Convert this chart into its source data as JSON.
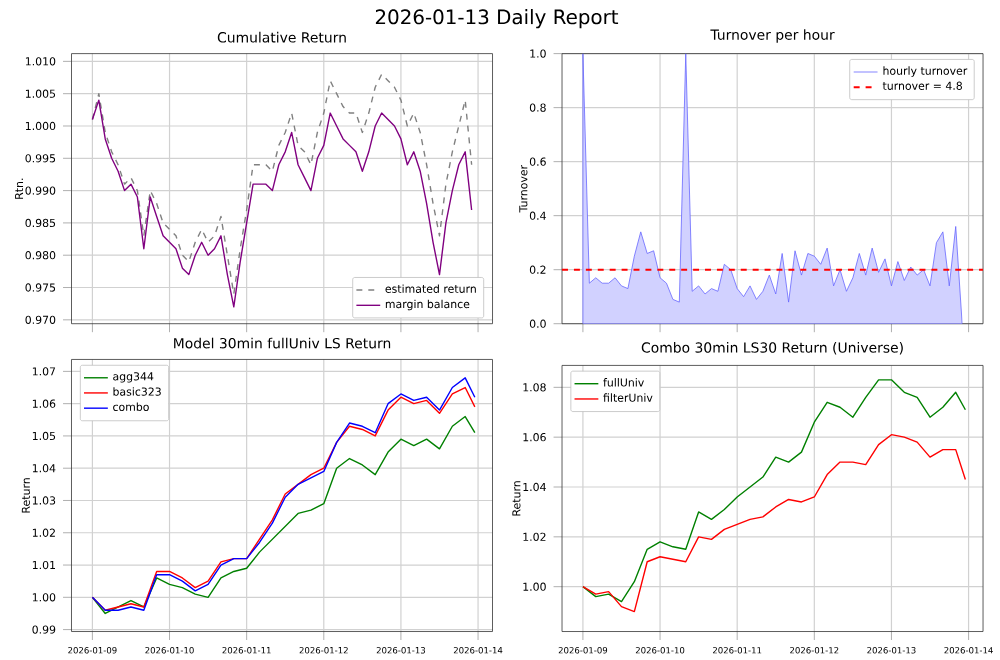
{
  "chart_data": [
    {
      "type": "line",
      "title": "Cumulative Return",
      "ylabel": "Rtn.",
      "annotations": [
        "2026-01-13 Daily Report"
      ],
      "x": [
        "2026-01-09T00:00",
        "2026-01-09T02:00",
        "2026-01-09T04:00",
        "2026-01-09T06:00",
        "2026-01-09T08:00",
        "2026-01-09T10:00",
        "2026-01-09T12:00",
        "2026-01-09T14:00",
        "2026-01-09T16:00",
        "2026-01-09T18:00",
        "2026-01-09T20:00",
        "2026-01-09T22:00",
        "2026-01-10T00:00",
        "2026-01-10T02:00",
        "2026-01-10T04:00",
        "2026-01-10T06:00",
        "2026-01-10T08:00",
        "2026-01-10T10:00",
        "2026-01-10T12:00",
        "2026-01-10T14:00",
        "2026-01-10T16:00",
        "2026-01-10T18:00",
        "2026-01-10T20:00",
        "2026-01-10T22:00",
        "2026-01-11T00:00",
        "2026-01-11T02:00",
        "2026-01-11T04:00",
        "2026-01-11T06:00",
        "2026-01-11T08:00",
        "2026-01-11T10:00",
        "2026-01-11T12:00",
        "2026-01-11T14:00",
        "2026-01-11T16:00",
        "2026-01-11T18:00",
        "2026-01-11T20:00",
        "2026-01-11T22:00",
        "2026-01-12T00:00",
        "2026-01-12T02:00",
        "2026-01-12T04:00",
        "2026-01-12T06:00",
        "2026-01-12T08:00",
        "2026-01-12T10:00",
        "2026-01-12T12:00",
        "2026-01-12T14:00",
        "2026-01-12T16:00",
        "2026-01-12T18:00",
        "2026-01-12T20:00",
        "2026-01-12T22:00",
        "2026-01-13T00:00",
        "2026-01-13T02:00",
        "2026-01-13T04:00",
        "2026-01-13T06:00",
        "2026-01-13T08:00",
        "2026-01-13T10:00",
        "2026-01-13T12:00",
        "2026-01-13T14:00",
        "2026-01-13T16:00",
        "2026-01-13T18:00",
        "2026-01-13T20:00",
        "2026-01-13T22:00"
      ],
      "series": [
        {
          "name": "estimated return",
          "color": "#808080",
          "line_style": "dashed",
          "values": [
            1.001,
            1.005,
            0.999,
            0.996,
            0.994,
            0.991,
            0.992,
            0.99,
            0.983,
            0.99,
            0.988,
            0.985,
            0.984,
            0.983,
            0.98,
            0.979,
            0.982,
            0.984,
            0.982,
            0.983,
            0.986,
            0.98,
            0.974,
            0.981,
            0.987,
            0.994,
            0.994,
            0.994,
            0.993,
            0.997,
            0.999,
            1.002,
            0.997,
            0.996,
            0.994,
            0.999,
            1.002,
            1.007,
            1.005,
            1.003,
            1.002,
            1.002,
            0.999,
            1.002,
            1.006,
            1.008,
            1.007,
            1.006,
            1.004,
            1.0,
            1.002,
            0.999,
            0.994,
            0.988,
            0.983,
            0.991,
            0.996,
            1.0,
            1.004,
            0.994
          ]
        },
        {
          "name": "margin balance",
          "color": "#800080",
          "values": [
            1.001,
            1.004,
            0.998,
            0.995,
            0.993,
            0.99,
            0.991,
            0.989,
            0.981,
            0.989,
            0.986,
            0.983,
            0.982,
            0.981,
            0.978,
            0.977,
            0.98,
            0.982,
            0.98,
            0.981,
            0.983,
            0.977,
            0.972,
            0.979,
            0.985,
            0.991,
            0.991,
            0.991,
            0.99,
            0.994,
            0.996,
            0.999,
            0.994,
            0.992,
            0.99,
            0.995,
            0.997,
            1.002,
            1.0,
            0.998,
            0.997,
            0.996,
            0.993,
            0.996,
            1.0,
            1.002,
            1.001,
            1.0,
            0.998,
            0.994,
            0.996,
            0.993,
            0.988,
            0.982,
            0.977,
            0.985,
            0.99,
            0.994,
            0.996,
            0.987
          ]
        }
      ],
      "xlim": [
        "2026-01-08T17:30",
        "2026-01-14T04:30"
      ],
      "xticks": [
        "2026-01-09",
        "2026-01-10",
        "2026-01-11",
        "2026-01-12",
        "2026-01-13",
        "2026-01-14"
      ],
      "ylim": [
        0.9694,
        1.0112
      ],
      "yticks": [
        {
          "value": 0.97,
          "label": "0.970"
        },
        {
          "value": 0.975,
          "label": "0.975"
        },
        {
          "value": 0.98,
          "label": "0.980"
        },
        {
          "value": 0.985,
          "label": "0.985"
        },
        {
          "value": 0.99,
          "label": "0.990"
        },
        {
          "value": 0.995,
          "label": "0.995"
        },
        {
          "value": 1.0,
          "label": "1.000"
        },
        {
          "value": 1.005,
          "label": "1.005"
        },
        {
          "value": 1.01,
          "label": "1.010"
        }
      ],
      "tick_labels": "y",
      "grid": true,
      "legend": "bottom right"
    },
    {
      "type": "area",
      "title": "Turnover per hour",
      "ylabel": "Turnover",
      "x": [
        "2026-01-09T00:00",
        "2026-01-09T02:00",
        "2026-01-09T04:00",
        "2026-01-09T06:00",
        "2026-01-09T08:00",
        "2026-01-09T10:00",
        "2026-01-09T12:00",
        "2026-01-09T14:00",
        "2026-01-09T16:00",
        "2026-01-09T18:00",
        "2026-01-09T20:00",
        "2026-01-09T22:00",
        "2026-01-10T00:00",
        "2026-01-10T02:00",
        "2026-01-10T04:00",
        "2026-01-10T06:00",
        "2026-01-10T08:00",
        "2026-01-10T10:00",
        "2026-01-10T12:00",
        "2026-01-10T14:00",
        "2026-01-10T16:00",
        "2026-01-10T18:00",
        "2026-01-10T20:00",
        "2026-01-10T22:00",
        "2026-01-11T00:00",
        "2026-01-11T02:00",
        "2026-01-11T04:00",
        "2026-01-11T06:00",
        "2026-01-11T08:00",
        "2026-01-11T10:00",
        "2026-01-11T12:00",
        "2026-01-11T14:00",
        "2026-01-11T16:00",
        "2026-01-11T18:00",
        "2026-01-11T20:00",
        "2026-01-11T22:00",
        "2026-01-12T00:00",
        "2026-01-12T02:00",
        "2026-01-12T04:00",
        "2026-01-12T06:00",
        "2026-01-12T08:00",
        "2026-01-12T10:00",
        "2026-01-12T12:00",
        "2026-01-12T14:00",
        "2026-01-12T16:00",
        "2026-01-12T18:00",
        "2026-01-12T20:00",
        "2026-01-12T22:00",
        "2026-01-13T00:00",
        "2026-01-13T02:00",
        "2026-01-13T04:00",
        "2026-01-13T06:00",
        "2026-01-13T08:00",
        "2026-01-13T10:00",
        "2026-01-13T12:00",
        "2026-01-13T14:00",
        "2026-01-13T16:00",
        "2026-01-13T18:00",
        "2026-01-13T20:00",
        "2026-01-13T22:00"
      ],
      "series": [
        {
          "name": "hourly turnover",
          "color": "#6666ff",
          "values": [
            1.0,
            0.15,
            0.17,
            0.15,
            0.15,
            0.17,
            0.14,
            0.13,
            0.25,
            0.34,
            0.26,
            0.27,
            0.17,
            0.15,
            0.09,
            0.08,
            1.0,
            0.12,
            0.14,
            0.11,
            0.13,
            0.12,
            0.22,
            0.2,
            0.13,
            0.1,
            0.14,
            0.09,
            0.12,
            0.18,
            0.11,
            0.26,
            0.08,
            0.27,
            0.18,
            0.26,
            0.25,
            0.22,
            0.28,
            0.14,
            0.2,
            0.12,
            0.17,
            0.26,
            0.18,
            0.28,
            0.19,
            0.24,
            0.14,
            0.23,
            0.16,
            0.21,
            0.18,
            0.2,
            0.14,
            0.3,
            0.34,
            0.14,
            0.36,
            0.0
          ]
        },
        {
          "name": "turnover = 4.8",
          "type": "line",
          "color": "#ff0000",
          "line_style": "dashed",
          "x": [
            "2026-01-08T17:30",
            "2026-01-14T04:30"
          ],
          "values": [
            0.2,
            0.2
          ]
        }
      ],
      "xlim": [
        "2026-01-08T17:30",
        "2026-01-14T04:30"
      ],
      "xticks": [
        "2026-01-09",
        "2026-01-10",
        "2026-01-11",
        "2026-01-12",
        "2026-01-13",
        "2026-01-14"
      ],
      "ylim": [
        0,
        1
      ],
      "yticks": [
        {
          "value": 0,
          "label": "0.0"
        },
        {
          "value": 0.2,
          "label": "0.2"
        },
        {
          "value": 0.4,
          "label": "0.4"
        },
        {
          "value": 0.6,
          "label": "0.6"
        },
        {
          "value": 0.8,
          "label": "0.8"
        },
        {
          "value": 1,
          "label": "1.0"
        }
      ],
      "tick_labels": "y",
      "grid": true,
      "legend": "top right"
    },
    {
      "type": "line",
      "title": "Model 30min fullUniv LS Return",
      "ylabel": "Return",
      "x": [
        "2026-01-09T00:00",
        "2026-01-09T04:00",
        "2026-01-09T08:00",
        "2026-01-09T12:00",
        "2026-01-09T16:00",
        "2026-01-09T20:00",
        "2026-01-10T00:00",
        "2026-01-10T04:00",
        "2026-01-10T08:00",
        "2026-01-10T12:00",
        "2026-01-10T16:00",
        "2026-01-10T20:00",
        "2026-01-11T00:00",
        "2026-01-11T04:00",
        "2026-01-11T08:00",
        "2026-01-11T12:00",
        "2026-01-11T16:00",
        "2026-01-11T20:00",
        "2026-01-12T00:00",
        "2026-01-12T04:00",
        "2026-01-12T08:00",
        "2026-01-12T12:00",
        "2026-01-12T16:00",
        "2026-01-12T20:00",
        "2026-01-13T00:00",
        "2026-01-13T04:00",
        "2026-01-13T08:00",
        "2026-01-13T12:00",
        "2026-01-13T16:00",
        "2026-01-13T20:00",
        "2026-01-13T23:00"
      ],
      "series": [
        {
          "name": "agg344",
          "color": "#008000",
          "values": [
            1.0,
            0.995,
            0.997,
            0.999,
            0.997,
            1.006,
            1.004,
            1.003,
            1.001,
            1.0,
            1.006,
            1.008,
            1.009,
            1.014,
            1.018,
            1.022,
            1.026,
            1.027,
            1.029,
            1.04,
            1.043,
            1.041,
            1.038,
            1.045,
            1.049,
            1.047,
            1.049,
            1.046,
            1.053,
            1.056,
            1.051
          ]
        },
        {
          "name": "basic323",
          "color": "#ff0000",
          "values": [
            1.0,
            0.996,
            0.997,
            0.998,
            0.997,
            1.008,
            1.008,
            1.006,
            1.003,
            1.005,
            1.011,
            1.012,
            1.012,
            1.018,
            1.024,
            1.032,
            1.035,
            1.038,
            1.04,
            1.048,
            1.053,
            1.052,
            1.05,
            1.058,
            1.062,
            1.06,
            1.061,
            1.057,
            1.063,
            1.065,
            1.059
          ]
        },
        {
          "name": "combo",
          "color": "#0000ff",
          "values": [
            1.0,
            0.996,
            0.996,
            0.997,
            0.996,
            1.007,
            1.007,
            1.005,
            1.002,
            1.004,
            1.01,
            1.012,
            1.012,
            1.017,
            1.023,
            1.031,
            1.035,
            1.037,
            1.039,
            1.048,
            1.054,
            1.053,
            1.051,
            1.06,
            1.063,
            1.061,
            1.062,
            1.058,
            1.065,
            1.068,
            1.062
          ]
        }
      ],
      "xlim": [
        "2026-01-08T17:30",
        "2026-01-14T04:30"
      ],
      "xticks": [
        "2026-01-09",
        "2026-01-10",
        "2026-01-11",
        "2026-01-12",
        "2026-01-13",
        "2026-01-14"
      ],
      "ylim": [
        0.9894,
        1.0737
      ],
      "yticks": [
        {
          "value": 0.99,
          "label": "0.99"
        },
        {
          "value": 1.0,
          "label": "1.00"
        },
        1.01,
        1.02,
        1.03,
        1.04,
        1.05,
        1.06,
        1.07
      ],
      "grid": true,
      "legend": "top left"
    },
    {
      "type": "line",
      "title": "Combo 30min LS30 Return (Universe)",
      "ylabel": "Return",
      "x": [
        "2026-01-09T00:00",
        "2026-01-09T04:00",
        "2026-01-09T08:00",
        "2026-01-09T12:00",
        "2026-01-09T16:00",
        "2026-01-09T20:00",
        "2026-01-10T00:00",
        "2026-01-10T04:00",
        "2026-01-10T08:00",
        "2026-01-10T12:00",
        "2026-01-10T16:00",
        "2026-01-10T20:00",
        "2026-01-11T00:00",
        "2026-01-11T04:00",
        "2026-01-11T08:00",
        "2026-01-11T12:00",
        "2026-01-11T16:00",
        "2026-01-11T20:00",
        "2026-01-12T00:00",
        "2026-01-12T04:00",
        "2026-01-12T08:00",
        "2026-01-12T12:00",
        "2026-01-12T16:00",
        "2026-01-12T20:00",
        "2026-01-13T00:00",
        "2026-01-13T04:00",
        "2026-01-13T08:00",
        "2026-01-13T12:00",
        "2026-01-13T16:00",
        "2026-01-13T20:00",
        "2026-01-13T23:00"
      ],
      "series": [
        {
          "name": "fullUniv",
          "color": "#008000",
          "values": [
            1.0,
            0.996,
            0.997,
            0.994,
            1.002,
            1.015,
            1.018,
            1.016,
            1.015,
            1.03,
            1.027,
            1.031,
            1.036,
            1.04,
            1.044,
            1.052,
            1.05,
            1.054,
            1.066,
            1.074,
            1.072,
            1.068,
            1.076,
            1.083,
            1.083,
            1.078,
            1.076,
            1.068,
            1.072,
            1.078,
            1.071
          ]
        },
        {
          "name": "filterUniv",
          "color": "#ff0000",
          "values": [
            1.0,
            0.997,
            0.998,
            0.992,
            0.99,
            1.01,
            1.012,
            1.011,
            1.01,
            1.02,
            1.019,
            1.023,
            1.025,
            1.027,
            1.028,
            1.032,
            1.035,
            1.034,
            1.036,
            1.045,
            1.05,
            1.05,
            1.049,
            1.057,
            1.061,
            1.06,
            1.058,
            1.052,
            1.055,
            1.055,
            1.043
          ]
        }
      ],
      "xlim": [
        "2026-01-08T17:30",
        "2026-01-14T04:30"
      ],
      "xticks": [
        "2026-01-09",
        "2026-01-10",
        "2026-01-11",
        "2026-01-12",
        "2026-01-13",
        "2026-01-14"
      ],
      "ylim": [
        0.982,
        1.0888
      ],
      "yticks": [
        {
          "value": 1.0,
          "label": "1.00"
        },
        {
          "value": 1.02,
          "label": "1.02"
        },
        {
          "value": 1.04,
          "label": "1.04"
        },
        {
          "value": 1.06,
          "label": "1.06"
        },
        {
          "value": 1.08,
          "label": "1.08"
        }
      ],
      "grid": true,
      "legend": "top left"
    }
  ]
}
